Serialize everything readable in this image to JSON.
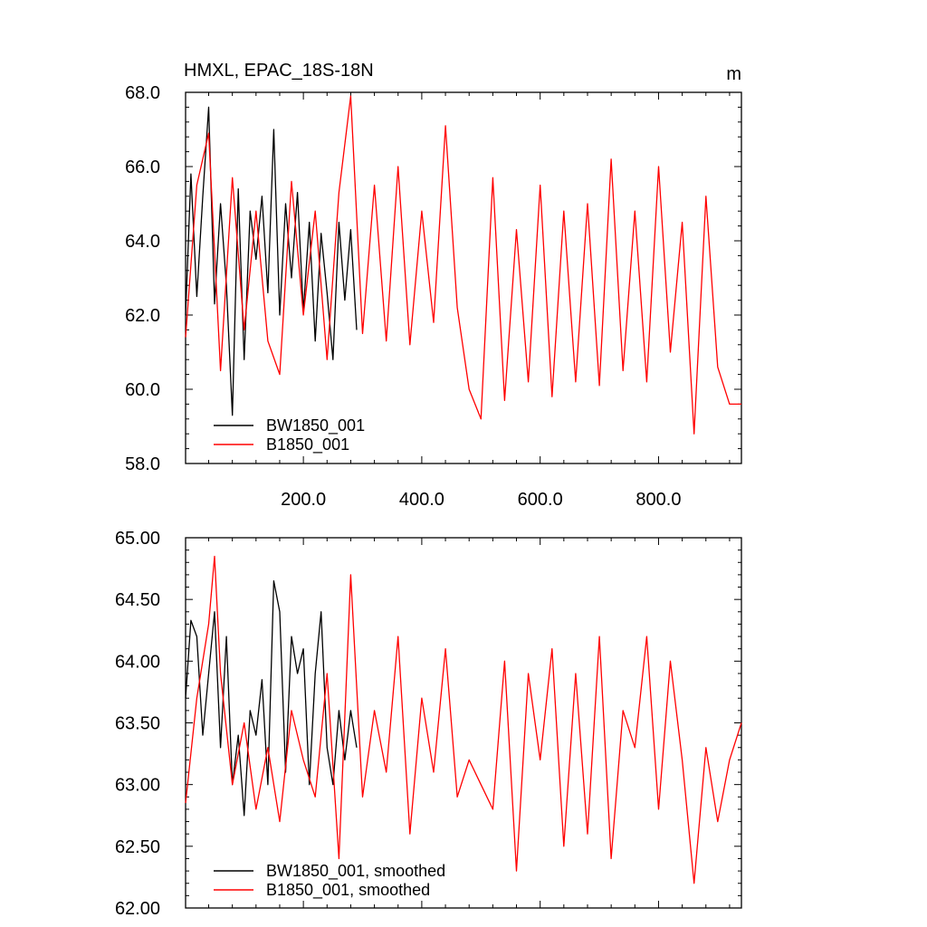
{
  "chart_data": [
    {
      "type": "line",
      "title": "HMXL, EPAC_18S-18N",
      "units": "m",
      "xlim": [
        1,
        940
      ],
      "ylim": [
        58.0,
        68.0
      ],
      "xticks": [
        200.0,
        400.0,
        600.0,
        800.0
      ],
      "xtick_labels": [
        "200.0",
        "400.0",
        "600.0",
        "800.0"
      ],
      "yticks": [
        58.0,
        60.0,
        62.0,
        64.0,
        66.0,
        68.0
      ],
      "ytick_labels": [
        "58.0",
        "60.0",
        "62.0",
        "64.0",
        "66.0",
        "68.0"
      ],
      "legend_position": "lower-left",
      "series": [
        {
          "name": "BW1850_001",
          "color": "#000000",
          "x": [
            1,
            10,
            20,
            30,
            40,
            50,
            60,
            70,
            80,
            90,
            100,
            110,
            120,
            130,
            140,
            150,
            160,
            170,
            180,
            190,
            200,
            210,
            220,
            230,
            240,
            250,
            260,
            270,
            280,
            290
          ],
          "values": [
            62.0,
            65.8,
            62.5,
            65.2,
            67.6,
            62.3,
            65.0,
            62.8,
            59.3,
            65.4,
            60.8,
            64.8,
            63.5,
            65.2,
            62.6,
            67.0,
            62.0,
            65.0,
            63.0,
            65.3,
            62.1,
            64.5,
            61.3,
            64.2,
            62.6,
            60.8,
            64.5,
            62.4,
            64.3,
            61.6
          ]
        },
        {
          "name": "B1850_001",
          "color": "#ff0000",
          "x": [
            1,
            20,
            40,
            60,
            80,
            100,
            120,
            140,
            160,
            180,
            200,
            220,
            240,
            260,
            280,
            300,
            320,
            340,
            360,
            380,
            400,
            420,
            440,
            460,
            480,
            500,
            520,
            540,
            560,
            580,
            600,
            620,
            640,
            660,
            680,
            700,
            720,
            740,
            760,
            780,
            800,
            820,
            840,
            860,
            880,
            900,
            920,
            940
          ],
          "values": [
            61.4,
            65.5,
            66.9,
            60.5,
            65.7,
            61.6,
            64.8,
            61.3,
            60.4,
            65.6,
            62.0,
            64.8,
            60.8,
            65.3,
            67.9,
            61.5,
            65.5,
            61.3,
            66.0,
            61.2,
            64.8,
            61.8,
            67.1,
            62.2,
            60.0,
            59.2,
            65.7,
            59.7,
            64.3,
            60.2,
            65.5,
            59.8,
            64.8,
            60.2,
            65.0,
            60.1,
            66.2,
            60.5,
            64.8,
            60.2,
            66.0,
            61.0,
            64.5,
            58.8,
            65.2,
            60.6,
            59.6,
            59.6
          ]
        }
      ]
    },
    {
      "type": "line",
      "xlim": [
        1,
        940
      ],
      "ylim": [
        62.0,
        65.0
      ],
      "xticks": [
        200.0,
        400.0,
        600.0,
        800.0
      ],
      "yticks": [
        62.0,
        62.5,
        63.0,
        63.5,
        64.0,
        64.5,
        65.0
      ],
      "ytick_labels": [
        "62.00",
        "62.50",
        "63.00",
        "63.50",
        "64.00",
        "64.50",
        "65.00"
      ],
      "legend_position": "lower-left",
      "series": [
        {
          "name": "BW1850_001, smoothed",
          "color": "#000000",
          "x": [
            1,
            10,
            20,
            30,
            40,
            50,
            60,
            70,
            80,
            90,
            100,
            110,
            120,
            130,
            140,
            150,
            160,
            170,
            180,
            190,
            200,
            210,
            220,
            230,
            240,
            250,
            260,
            270,
            280,
            290
          ],
          "values": [
            63.7,
            64.33,
            64.2,
            63.4,
            63.9,
            64.4,
            63.3,
            64.2,
            63.0,
            63.4,
            62.75,
            63.6,
            63.4,
            63.85,
            63.0,
            64.65,
            64.4,
            63.1,
            64.2,
            63.9,
            64.1,
            63.0,
            63.9,
            64.4,
            63.3,
            63.0,
            63.6,
            63.2,
            63.6,
            63.3
          ]
        },
        {
          "name": "B1850_001, smoothed",
          "color": "#ff0000",
          "x": [
            1,
            20,
            40,
            50,
            60,
            80,
            100,
            120,
            140,
            160,
            180,
            200,
            220,
            240,
            260,
            280,
            300,
            320,
            340,
            360,
            380,
            400,
            420,
            440,
            460,
            480,
            500,
            520,
            540,
            560,
            580,
            600,
            620,
            640,
            660,
            680,
            700,
            720,
            740,
            760,
            780,
            800,
            820,
            840,
            860,
            880,
            900,
            920,
            940
          ],
          "values": [
            62.85,
            63.7,
            64.3,
            64.85,
            63.9,
            63.0,
            63.5,
            62.8,
            63.3,
            62.7,
            63.6,
            63.2,
            62.9,
            63.9,
            62.4,
            64.7,
            62.9,
            63.6,
            63.1,
            64.2,
            62.6,
            63.7,
            63.1,
            64.1,
            62.9,
            63.2,
            63.0,
            62.8,
            64.0,
            62.3,
            63.9,
            63.2,
            64.1,
            62.5,
            63.9,
            62.6,
            64.2,
            62.4,
            63.6,
            63.3,
            64.2,
            62.8,
            64.0,
            63.2,
            62.2,
            63.3,
            62.7,
            63.2,
            63.5
          ]
        }
      ]
    }
  ]
}
